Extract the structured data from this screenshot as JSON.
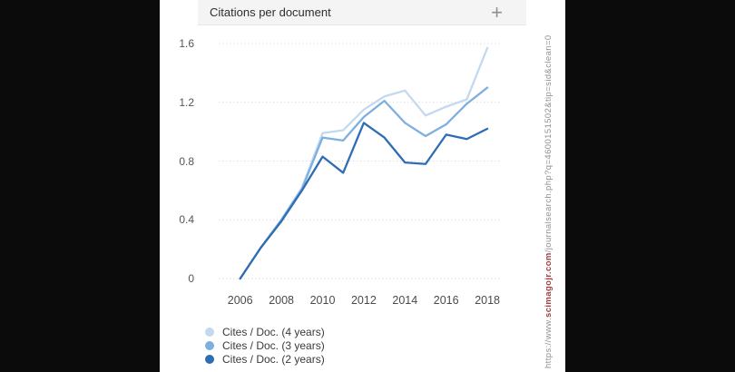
{
  "header": {
    "title": "Citations per document",
    "expand_icon": "+"
  },
  "sidebar_url": {
    "prefix": "https://www.",
    "domain": "scimagojr.com",
    "path": "/journalsearch.php?q=4600151502&tip=sid&clean=0"
  },
  "colors": {
    "series_4y": "#c3d9ef",
    "series_3y": "#7fafdf",
    "series_2y": "#2e6db4",
    "grid": "#d8d8d8",
    "header_bg": "#f4f4f4",
    "black_panel": "#0b0b0b",
    "url_domain_red": "#a04040"
  },
  "chart_data": {
    "type": "line",
    "title": "Citations per document",
    "x": [
      2006,
      2007,
      2008,
      2009,
      2010,
      2011,
      2012,
      2013,
      2014,
      2015,
      2016,
      2017,
      2018
    ],
    "x_tick_labels": [
      "2006",
      "2008",
      "2010",
      "2012",
      "2014",
      "2016",
      "2018"
    ],
    "x_tick_values": [
      2006,
      2008,
      2010,
      2012,
      2014,
      2016,
      2018
    ],
    "y_tick_labels": [
      "0",
      "0.4",
      "0.8",
      "1.2",
      "1.6"
    ],
    "y_tick_values": [
      0,
      0.4,
      0.8,
      1.2,
      1.6
    ],
    "ylim": [
      0,
      1.6
    ],
    "grid": "dotted horizontal",
    "legend_position": "bottom-left",
    "series": [
      {
        "name": "Cites / Doc. (4 years)",
        "color": "#c3d9ef",
        "values": [
          0,
          0.21,
          0.4,
          0.62,
          0.99,
          1.01,
          1.15,
          1.24,
          1.28,
          1.11,
          1.17,
          1.22,
          1.57
        ]
      },
      {
        "name": "Cites / Doc. (3 years)",
        "color": "#7fafdf",
        "values": [
          0,
          0.21,
          0.4,
          0.61,
          0.96,
          0.94,
          1.1,
          1.21,
          1.06,
          0.97,
          1.05,
          1.19,
          1.3
        ]
      },
      {
        "name": "Cites / Doc. (2 years)",
        "color": "#2e6db4",
        "values": [
          0,
          0.21,
          0.39,
          0.6,
          0.83,
          0.72,
          1.06,
          0.96,
          0.79,
          0.78,
          0.98,
          0.95,
          1.02
        ]
      }
    ]
  }
}
